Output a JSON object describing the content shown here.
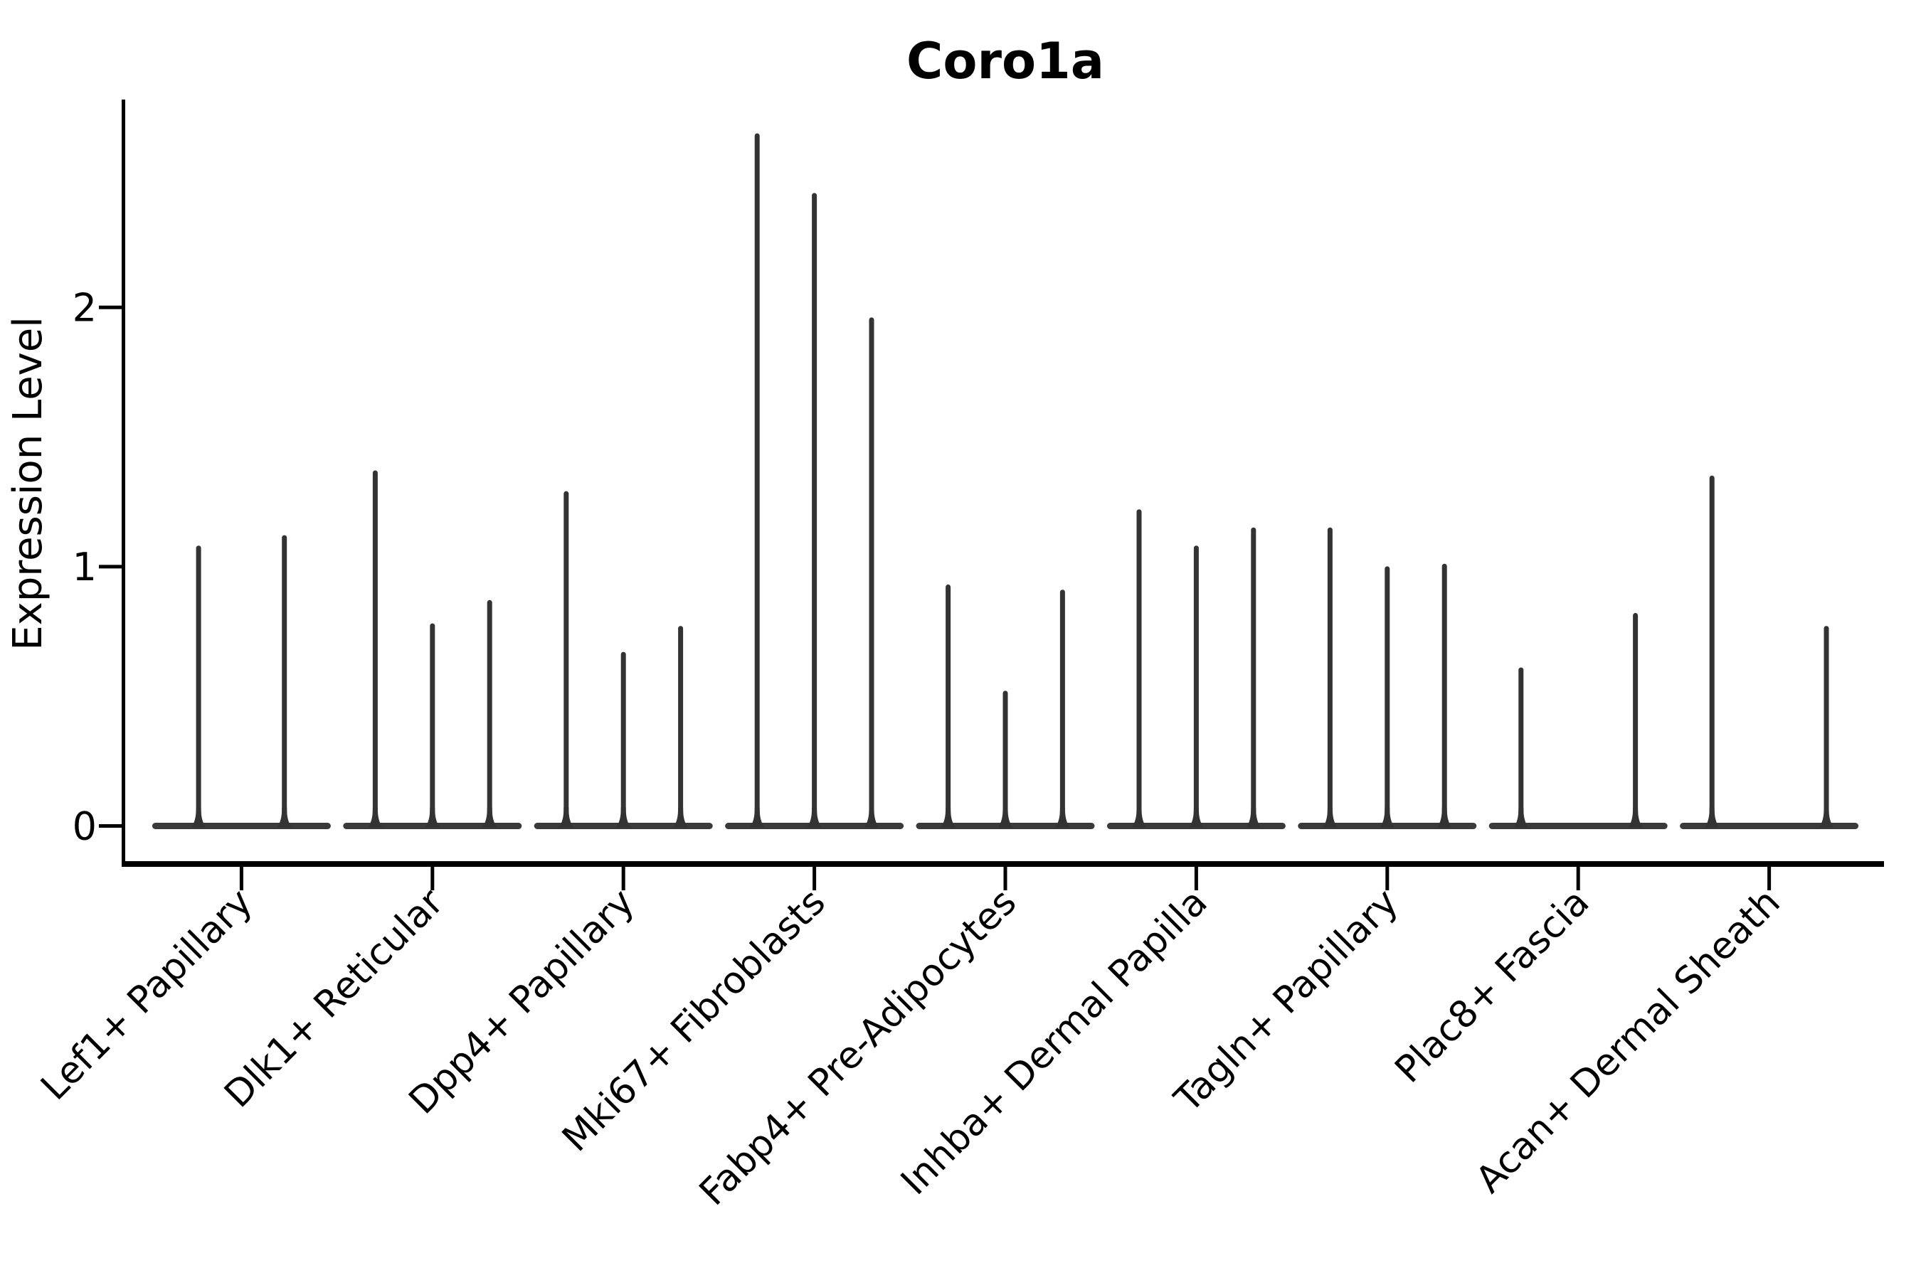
{
  "chart_data": {
    "type": "violin",
    "title": "Coro1a",
    "ylabel": "Expression Level",
    "xlabel": "",
    "ylim": [
      0,
      2.8
    ],
    "yticks": [
      "0",
      "1",
      "2"
    ],
    "ytick_values": [
      0,
      1,
      2
    ],
    "grid": false,
    "legend": null,
    "categories": [
      "Lef1+ Papillary",
      "Dlk1+ Reticular",
      "Dpp4+ Papillary",
      "Mki67+ Fibroblasts",
      "Fabp4+ Pre-Adipocytes",
      "Inhba+ Dermal Papilla",
      "Tagln+ Papillary",
      "Plac8+ Fascia",
      "Acan+ Dermal Sheath"
    ],
    "groups": [
      {
        "category": "Lef1+ Papillary",
        "violin_maxima": [
          1.08,
          1.12
        ]
      },
      {
        "category": "Dlk1+ Reticular",
        "violin_maxima": [
          1.37,
          0.78,
          0.87
        ]
      },
      {
        "category": "Dpp4+ Papillary",
        "violin_maxima": [
          1.29,
          0.67,
          0.77
        ]
      },
      {
        "category": "Mki67+ Fibroblasts",
        "violin_maxima": [
          2.67,
          2.44,
          1.96
        ]
      },
      {
        "category": "Fabp4+ Pre-Adipocytes",
        "violin_maxima": [
          0.93,
          0.52,
          0.91
        ]
      },
      {
        "category": "Inhba+ Dermal Papilla",
        "violin_maxima": [
          1.22,
          1.08,
          1.15
        ]
      },
      {
        "category": "Tagln+ Papillary",
        "violin_maxima": [
          1.15,
          1.0,
          1.01
        ]
      },
      {
        "category": "Plac8+ Fascia",
        "violin_maxima": [
          0.61,
          0,
          0.82
        ]
      },
      {
        "category": "Acan+ Dermal Sheath",
        "violin_maxima": [
          1.35,
          0,
          0.77
        ]
      }
    ]
  },
  "colors": {
    "spike": "#333333",
    "baseline": "#3a3a3a",
    "axis": "#000000",
    "text": "#000000",
    "background": "#ffffff"
  }
}
